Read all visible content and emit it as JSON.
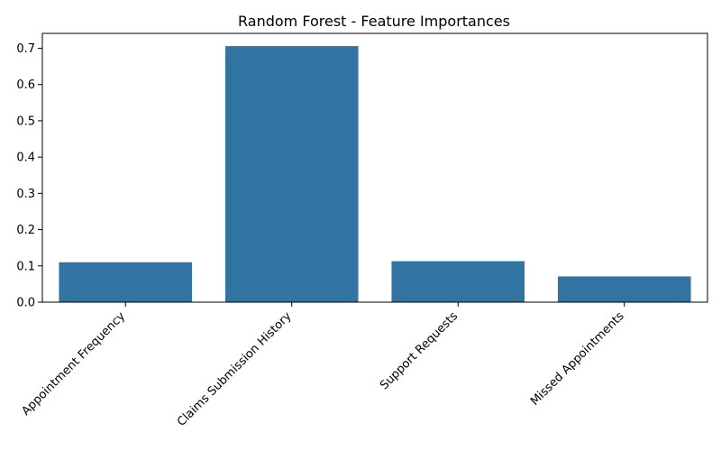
{
  "chart_data": {
    "type": "bar",
    "title": "Random Forest - Feature Importances",
    "xlabel": "",
    "ylabel": "",
    "categories": [
      "Appointment Frequency",
      "Claims Submission History",
      "Support Requests",
      "Missed Appointments"
    ],
    "values": [
      0.11,
      0.706,
      0.113,
      0.071
    ],
    "ylim": [
      0,
      0.741
    ],
    "yticks": [
      0.0,
      0.1,
      0.2,
      0.3,
      0.4,
      0.5,
      0.6,
      0.7
    ],
    "ytick_labels": [
      "0.0",
      "0.1",
      "0.2",
      "0.3",
      "0.4",
      "0.5",
      "0.6",
      "0.7"
    ],
    "bar_color": "#3274a1",
    "grid": false,
    "legend": "none"
  }
}
